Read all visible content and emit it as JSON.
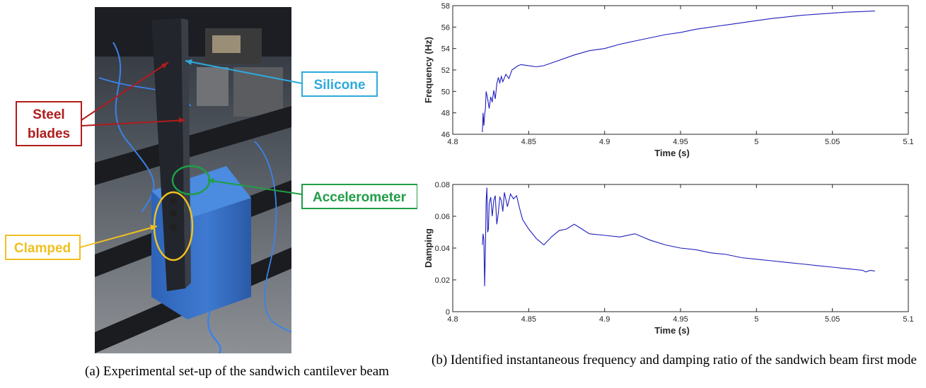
{
  "photo": {
    "labels": {
      "silicone": "Silicone",
      "steel_line1": "Steel",
      "steel_line2": "blades",
      "accelerometer": "Accelerometer",
      "clamped": "Clamped"
    },
    "colors": {
      "silicone": "#2eaadc",
      "steel": "#b01c1c",
      "accelerometer": "#1f9e45",
      "clamped": "#f0c020"
    }
  },
  "captions": {
    "a": "(a) Experimental set-up of the sandwich cantilever beam",
    "b": "(b) Identified instantaneous frequency and damping ratio of the sandwich beam first mode"
  },
  "chart_data": [
    {
      "type": "line",
      "xlabel": "Time (s)",
      "ylabel": "Frequency (Hz)",
      "xlim": [
        4.8,
        5.1
      ],
      "ylim": [
        46,
        58
      ],
      "xticks": [
        "4.8",
        "4.85",
        "4.9",
        "4.95",
        "5",
        "5.05",
        "5.1"
      ],
      "yticks": [
        "46",
        "48",
        "50",
        "52",
        "54",
        "56",
        "58"
      ],
      "color": "#1f1fbf",
      "x": [
        4.8195,
        4.82,
        4.8205,
        4.821,
        4.8215,
        4.822,
        4.823,
        4.824,
        4.825,
        4.826,
        4.827,
        4.828,
        4.829,
        4.83,
        4.831,
        4.832,
        4.833,
        4.835,
        4.837,
        4.839,
        4.841,
        4.843,
        4.845,
        4.85,
        4.855,
        4.86,
        4.87,
        4.88,
        4.89,
        4.9,
        4.91,
        4.92,
        4.93,
        4.94,
        4.95,
        4.96,
        4.97,
        4.98,
        4.99,
        5.0,
        5.01,
        5.02,
        5.03,
        5.04,
        5.05,
        5.06,
        5.07,
        5.078
      ],
      "y": [
        46.2,
        48.0,
        46.8,
        47.8,
        48.4,
        50.0,
        49.3,
        48.4,
        49.5,
        49.0,
        50.1,
        49.3,
        50.7,
        51.3,
        50.8,
        51.4,
        50.9,
        51.6,
        51.2,
        52.0,
        52.2,
        52.4,
        52.5,
        52.4,
        52.3,
        52.4,
        52.9,
        53.4,
        53.8,
        54.0,
        54.4,
        54.7,
        55.0,
        55.3,
        55.5,
        55.8,
        56.0,
        56.2,
        56.4,
        56.6,
        56.8,
        56.95,
        57.1,
        57.2,
        57.3,
        57.4,
        57.45,
        57.5
      ]
    },
    {
      "type": "line",
      "xlabel": "Time (s)",
      "ylabel": "Damping",
      "xlim": [
        4.8,
        5.1
      ],
      "ylim": [
        0,
        0.08
      ],
      "xticks": [
        "4.8",
        "4.85",
        "4.9",
        "4.95",
        "5",
        "5.05",
        "5.1"
      ],
      "yticks": [
        "0",
        "0.02",
        "0.04",
        "0.06",
        "0.08"
      ],
      "color": "#1f1fbf",
      "x": [
        4.8195,
        4.82,
        4.8205,
        4.821,
        4.8215,
        4.822,
        4.8225,
        4.823,
        4.8235,
        4.824,
        4.825,
        4.826,
        4.827,
        4.828,
        4.829,
        4.83,
        4.831,
        4.832,
        4.833,
        4.834,
        4.836,
        4.838,
        4.84,
        4.842,
        4.844,
        4.846,
        4.85,
        4.855,
        4.86,
        4.865,
        4.87,
        4.875,
        4.88,
        4.885,
        4.89,
        4.9,
        4.91,
        4.92,
        4.93,
        4.94,
        4.95,
        4.96,
        4.97,
        4.98,
        4.99,
        5.0,
        5.01,
        5.02,
        5.03,
        5.04,
        5.05,
        5.06,
        5.07,
        5.072,
        5.075,
        5.078
      ],
      "y": [
        0.042,
        0.049,
        0.045,
        0.016,
        0.04,
        0.07,
        0.078,
        0.05,
        0.052,
        0.068,
        0.072,
        0.06,
        0.07,
        0.073,
        0.055,
        0.062,
        0.072,
        0.07,
        0.063,
        0.075,
        0.066,
        0.074,
        0.071,
        0.073,
        0.065,
        0.058,
        0.052,
        0.046,
        0.042,
        0.047,
        0.051,
        0.052,
        0.055,
        0.052,
        0.049,
        0.048,
        0.047,
        0.049,
        0.045,
        0.042,
        0.04,
        0.039,
        0.037,
        0.036,
        0.034,
        0.033,
        0.032,
        0.031,
        0.03,
        0.029,
        0.028,
        0.027,
        0.026,
        0.025,
        0.026,
        0.0255
      ]
    }
  ]
}
